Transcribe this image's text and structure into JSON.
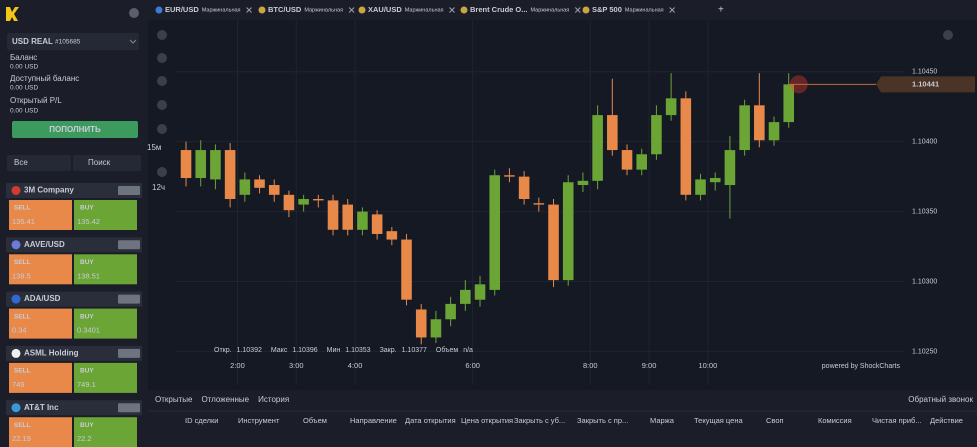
{
  "sidebar": {
    "account": "USD REAL",
    "account_id": "#105685",
    "balance_label": "Баланс",
    "balance": "0.00 USD",
    "available_label": "Доступный баланс",
    "available": "0.00 USD",
    "pl_label": "Открытый P/L",
    "pl": "0.00 USD",
    "deposit_button": "ПОПОЛНИТЬ",
    "filter": "Все",
    "search": "Поиск",
    "instruments": [
      {
        "name": "3M Company",
        "sell_label": "SELL",
        "buy_label": "BUY",
        "sell": "135.41",
        "buy": "135.42"
      },
      {
        "name": "AAVE/USD",
        "sell_label": "SELL",
        "buy_label": "BUY",
        "sell": "138.5",
        "buy": "138.51"
      },
      {
        "name": "ADA/USD",
        "sell_label": "SELL",
        "buy_label": "BUY",
        "sell": "0.34",
        "buy": "0.3401"
      },
      {
        "name": "ASML Holding",
        "sell_label": "SELL",
        "buy_label": "BUY",
        "sell": "749",
        "buy": "749.1"
      },
      {
        "name": "AT&T Inc",
        "sell_label": "SELL",
        "buy_label": "BUY",
        "sell": "22.19",
        "buy": "22.2"
      }
    ]
  },
  "tabs": [
    {
      "symbol": "EUR/USD",
      "kind": "Маржинальная"
    },
    {
      "symbol": "BTC/USD",
      "kind": "Маржинальная"
    },
    {
      "symbol": "XAU/USD",
      "kind": "Маржинальная"
    },
    {
      "symbol": "Brent Crude O...",
      "kind": "Маржинальная"
    },
    {
      "symbol": "S&P 500",
      "kind": "Маржинальная"
    }
  ],
  "add_tab": "+",
  "toolbar": {
    "interval": "15м",
    "range": "12ч"
  },
  "info": [
    {
      "label": "Откр.",
      "value": "1.10392"
    },
    {
      "label": "Макс",
      "value": "1.10396"
    },
    {
      "label": "Мин",
      "value": "1.10353"
    },
    {
      "label": "Закр.",
      "value": "1.10377"
    },
    {
      "label": "Объем",
      "value": "n/a"
    }
  ],
  "chart_data": {
    "type": "candlestick",
    "up_color": "#6aa536",
    "down_color": "#e8894a",
    "grid": true,
    "watermark": "powered by ShockCharts",
    "open": [
      1.10394,
      1.10374,
      1.10373,
      1.10394,
      1.10362,
      1.10373,
      1.10369,
      1.10362,
      1.10355,
      1.10359,
      1.10358,
      1.10355,
      1.10337,
      1.10348,
      1.10336,
      1.1033,
      1.1028,
      1.1026,
      1.10273,
      1.10284,
      1.10287,
      1.10294,
      1.10376,
      1.10375,
      1.10356,
      1.10355,
      1.10301,
      1.10369,
      1.10372,
      1.10419,
      1.10394,
      1.1038,
      1.10391,
      1.10419,
      1.10431,
      1.10362,
      1.10371,
      1.10369,
      1.10394,
      1.10426,
      1.10401,
      1.10414
    ],
    "high": [
      1.104,
      1.10401,
      1.10398,
      1.10399,
      1.10378,
      1.10376,
      1.10373,
      1.10365,
      1.10362,
      1.10362,
      1.10362,
      1.10359,
      1.10353,
      1.10351,
      1.10339,
      1.10334,
      1.10284,
      1.10279,
      1.10289,
      1.10301,
      1.10304,
      1.1038,
      1.10381,
      1.10379,
      1.1036,
      1.10359,
      1.10376,
      1.10378,
      1.10426,
      1.10445,
      1.10398,
      1.10395,
      1.10426,
      1.10449,
      1.10436,
      1.10377,
      1.10378,
      1.10404,
      1.1043,
      1.10449,
      1.10418,
      1.10449
    ],
    "low": [
      1.10368,
      1.10368,
      1.10366,
      1.10353,
      1.10357,
      1.10363,
      1.10357,
      1.10346,
      1.1035,
      1.10353,
      1.10333,
      1.10333,
      1.10333,
      1.1033,
      1.10326,
      1.10283,
      1.10255,
      1.10256,
      1.10268,
      1.10279,
      1.10282,
      1.1029,
      1.10371,
      1.10355,
      1.1035,
      1.10296,
      1.10297,
      1.10364,
      1.10366,
      1.1039,
      1.10376,
      1.10376,
      1.10387,
      1.10415,
      1.10358,
      1.10358,
      1.10365,
      1.10345,
      1.1039,
      1.10396,
      1.10397,
      1.1041
    ],
    "close": [
      1.10374,
      1.10394,
      1.10394,
      1.10359,
      1.10373,
      1.10367,
      1.10362,
      1.10351,
      1.10359,
      1.10358,
      1.10337,
      1.10337,
      1.1035,
      1.10334,
      1.1033,
      1.10287,
      1.1026,
      1.10273,
      1.10284,
      1.10294,
      1.10298,
      1.10376,
      1.10375,
      1.10359,
      1.10355,
      1.10301,
      1.10371,
      1.10372,
      1.10419,
      1.10394,
      1.1038,
      1.10391,
      1.10419,
      1.10431,
      1.10362,
      1.10373,
      1.10374,
      1.10394,
      1.10426,
      1.10401,
      1.10414,
      1.10441
    ],
    "last_price": {
      "value": 1.10441,
      "label": "1.10441"
    },
    "xlim": [
      -0.75,
      48.91
    ],
    "xticks": [
      {
        "value": 3.5,
        "label": "2:00"
      },
      {
        "value": 7.5,
        "label": "3:00"
      },
      {
        "value": 11.5,
        "label": "4:00"
      },
      {
        "value": 19.5,
        "label": "6:00"
      },
      {
        "value": 27.5,
        "label": "8:00"
      },
      {
        "value": 31.5,
        "label": "9:00"
      },
      {
        "value": 35.5,
        "label": "10:00"
      }
    ],
    "ylim": [
      1.10226,
      1.10487
    ],
    "yticks": [
      {
        "value": 1.1025,
        "label": "1.10250"
      },
      {
        "value": 1.103,
        "label": "1.10300"
      },
      {
        "value": 1.1035,
        "label": "1.10350"
      },
      {
        "value": 1.104,
        "label": "1.10400"
      },
      {
        "value": 1.1045,
        "label": "1.10450"
      }
    ]
  },
  "bottom": {
    "tabs": [
      "Открытые",
      "Отложенные",
      "История"
    ],
    "callback": "Обратный звонок",
    "columns": [
      "ID сделки",
      "Инструмент",
      "Объем",
      "Направление",
      "Дата открытия",
      "Цена открытия",
      "Закрыть с уб...",
      "Закрыть с пр...",
      "Маржа",
      "Текущая цена",
      "Своп",
      "Комиссия",
      "Чистая приб...",
      "Действие"
    ]
  }
}
